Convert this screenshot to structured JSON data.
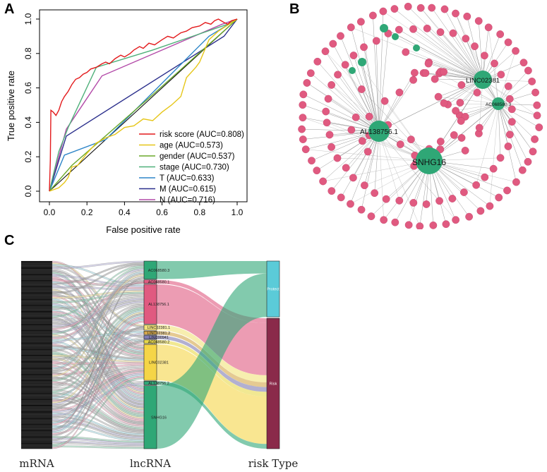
{
  "panels": {
    "a": "A",
    "b": "B",
    "c": "C"
  },
  "chart_data": [
    {
      "type": "line",
      "panel": "A",
      "xlabel": "False positive rate",
      "ylabel": "True positive rate",
      "xlim": [
        0,
        1
      ],
      "ylim": [
        0,
        1
      ],
      "x_ticks": [
        "0.0",
        "0.2",
        "0.4",
        "0.6",
        "0.8",
        "1.0"
      ],
      "y_ticks": [
        "0.0",
        "0.2",
        "0.4",
        "0.6",
        "0.8",
        "1.0"
      ],
      "legend_position": "bottom-right",
      "series": [
        {
          "name": "risk score (AUC=0.808)",
          "color": "#e31a1c",
          "points": [
            [
              0,
              0
            ],
            [
              0.005,
              0.18
            ],
            [
              0.008,
              0.47
            ],
            [
              0.02,
              0.46
            ],
            [
              0.035,
              0.44
            ],
            [
              0.05,
              0.47
            ],
            [
              0.065,
              0.52
            ],
            [
              0.08,
              0.55
            ],
            [
              0.1,
              0.58
            ],
            [
              0.12,
              0.62
            ],
            [
              0.14,
              0.65
            ],
            [
              0.16,
              0.66
            ],
            [
              0.18,
              0.68
            ],
            [
              0.2,
              0.69
            ],
            [
              0.22,
              0.71
            ],
            [
              0.25,
              0.72
            ],
            [
              0.28,
              0.74
            ],
            [
              0.3,
              0.75
            ],
            [
              0.32,
              0.74
            ],
            [
              0.35,
              0.77
            ],
            [
              0.38,
              0.79
            ],
            [
              0.4,
              0.78
            ],
            [
              0.43,
              0.8
            ],
            [
              0.45,
              0.82
            ],
            [
              0.48,
              0.84
            ],
            [
              0.5,
              0.83
            ],
            [
              0.53,
              0.86
            ],
            [
              0.56,
              0.85
            ],
            [
              0.6,
              0.88
            ],
            [
              0.63,
              0.9
            ],
            [
              0.66,
              0.89
            ],
            [
              0.7,
              0.92
            ],
            [
              0.73,
              0.93
            ],
            [
              0.76,
              0.95
            ],
            [
              0.8,
              0.96
            ],
            [
              0.83,
              0.98
            ],
            [
              0.86,
              0.97
            ],
            [
              0.88,
              0.99
            ],
            [
              0.9,
              1.0
            ],
            [
              0.93,
              0.98
            ],
            [
              0.95,
              0.97
            ],
            [
              0.97,
              0.99
            ],
            [
              1,
              1
            ]
          ]
        },
        {
          "name": "age (AUC=0.573)",
          "color": "#e6c619",
          "points": [
            [
              0,
              0
            ],
            [
              0.05,
              0.02
            ],
            [
              0.08,
              0.05
            ],
            [
              0.1,
              0.08
            ],
            [
              0.12,
              0.14
            ],
            [
              0.15,
              0.15
            ],
            [
              0.2,
              0.22
            ],
            [
              0.25,
              0.28
            ],
            [
              0.3,
              0.31
            ],
            [
              0.35,
              0.33
            ],
            [
              0.4,
              0.37
            ],
            [
              0.45,
              0.38
            ],
            [
              0.5,
              0.42
            ],
            [
              0.55,
              0.41
            ],
            [
              0.6,
              0.46
            ],
            [
              0.65,
              0.5
            ],
            [
              0.7,
              0.55
            ],
            [
              0.73,
              0.66
            ],
            [
              0.78,
              0.72
            ],
            [
              0.8,
              0.75
            ],
            [
              0.85,
              0.88
            ],
            [
              0.9,
              0.93
            ],
            [
              1,
              1
            ]
          ]
        },
        {
          "name": "gender (AUC=0.537)",
          "color": "#6aa82a",
          "points": [
            [
              0,
              0
            ],
            [
              0.12,
              0.15
            ],
            [
              0.55,
              0.56
            ],
            [
              1,
              1
            ]
          ]
        },
        {
          "name": "stage (AUC=0.730)",
          "color": "#4fb07a",
          "points": [
            [
              0,
              0
            ],
            [
              0.05,
              0.23
            ],
            [
              0.1,
              0.37
            ],
            [
              0.25,
              0.72
            ],
            [
              0.55,
              0.82
            ],
            [
              0.95,
              0.97
            ],
            [
              1,
              1
            ]
          ]
        },
        {
          "name": "T (AUC=0.633)",
          "color": "#2e86c8",
          "points": [
            [
              0,
              0
            ],
            [
              0.08,
              0.21
            ],
            [
              0.3,
              0.3
            ],
            [
              0.85,
              0.9
            ],
            [
              1,
              1
            ]
          ]
        },
        {
          "name": "M (AUC=0.615)",
          "color": "#2b2f8c",
          "points": [
            [
              0,
              0
            ],
            [
              0.09,
              0.32
            ],
            [
              0.93,
              0.9
            ],
            [
              1,
              1
            ]
          ]
        },
        {
          "name": "N (AUC=0.716)",
          "color": "#b34aa8",
          "points": [
            [
              0,
              0
            ],
            [
              0.09,
              0.36
            ],
            [
              0.28,
              0.67
            ],
            [
              0.92,
              0.97
            ],
            [
              1,
              1
            ]
          ]
        }
      ],
      "reference_line": [
        [
          0,
          0
        ],
        [
          1,
          1
        ]
      ]
    },
    {
      "type": "network",
      "panel": "B",
      "hubs": [
        "LINC02381",
        "AC068580.3",
        "AL138756.1",
        "SNHG16",
        "LINC02381",
        "AC068580.3"
      ],
      "hub_labels_shown": [
        "LINC02381",
        "AC068580.3",
        "AL138756.1",
        "SNHG16"
      ],
      "node_color": "#e05a80",
      "hub_color": "#2fa776",
      "outer_ring_nodes": 60,
      "inner_ring_nodes": 44,
      "center_nodes": 46
    },
    {
      "type": "sankey",
      "panel": "C",
      "axis_labels": [
        "mRNA",
        "lncRNA",
        "risk Type"
      ],
      "lncRNA_nodes": [
        {
          "label": "AC068580.3",
          "color": "#2fa776",
          "weight": 10
        },
        {
          "label": "AC068580.1",
          "color": "#e05a80",
          "weight": 2
        },
        {
          "label": "AL138756.1",
          "color": "#e05a80",
          "weight": 22
        },
        {
          "label": "LINC02381.1",
          "color": "#f2e27a",
          "weight": 3
        },
        {
          "label": "LINC02381.2",
          "color": "#d4a74a",
          "weight": 2
        },
        {
          "label": "LINC00941",
          "color": "#7e7bb3",
          "weight": 2
        },
        {
          "label": "AC068580.2",
          "color": "#e8d94a",
          "weight": 2
        },
        {
          "label": "LINC02381",
          "color": "#f5d547",
          "weight": 20
        },
        {
          "label": "AL138756.2",
          "color": "#2fa776",
          "weight": 2
        },
        {
          "label": "SNHG16",
          "color": "#2fa776",
          "weight": 35
        }
      ],
      "risk_nodes": [
        {
          "label": "Protect",
          "color": "#5bcbd8",
          "weight": 30
        },
        {
          "label": "Risk",
          "color": "#8a2a4a",
          "weight": 70
        }
      ]
    }
  ]
}
